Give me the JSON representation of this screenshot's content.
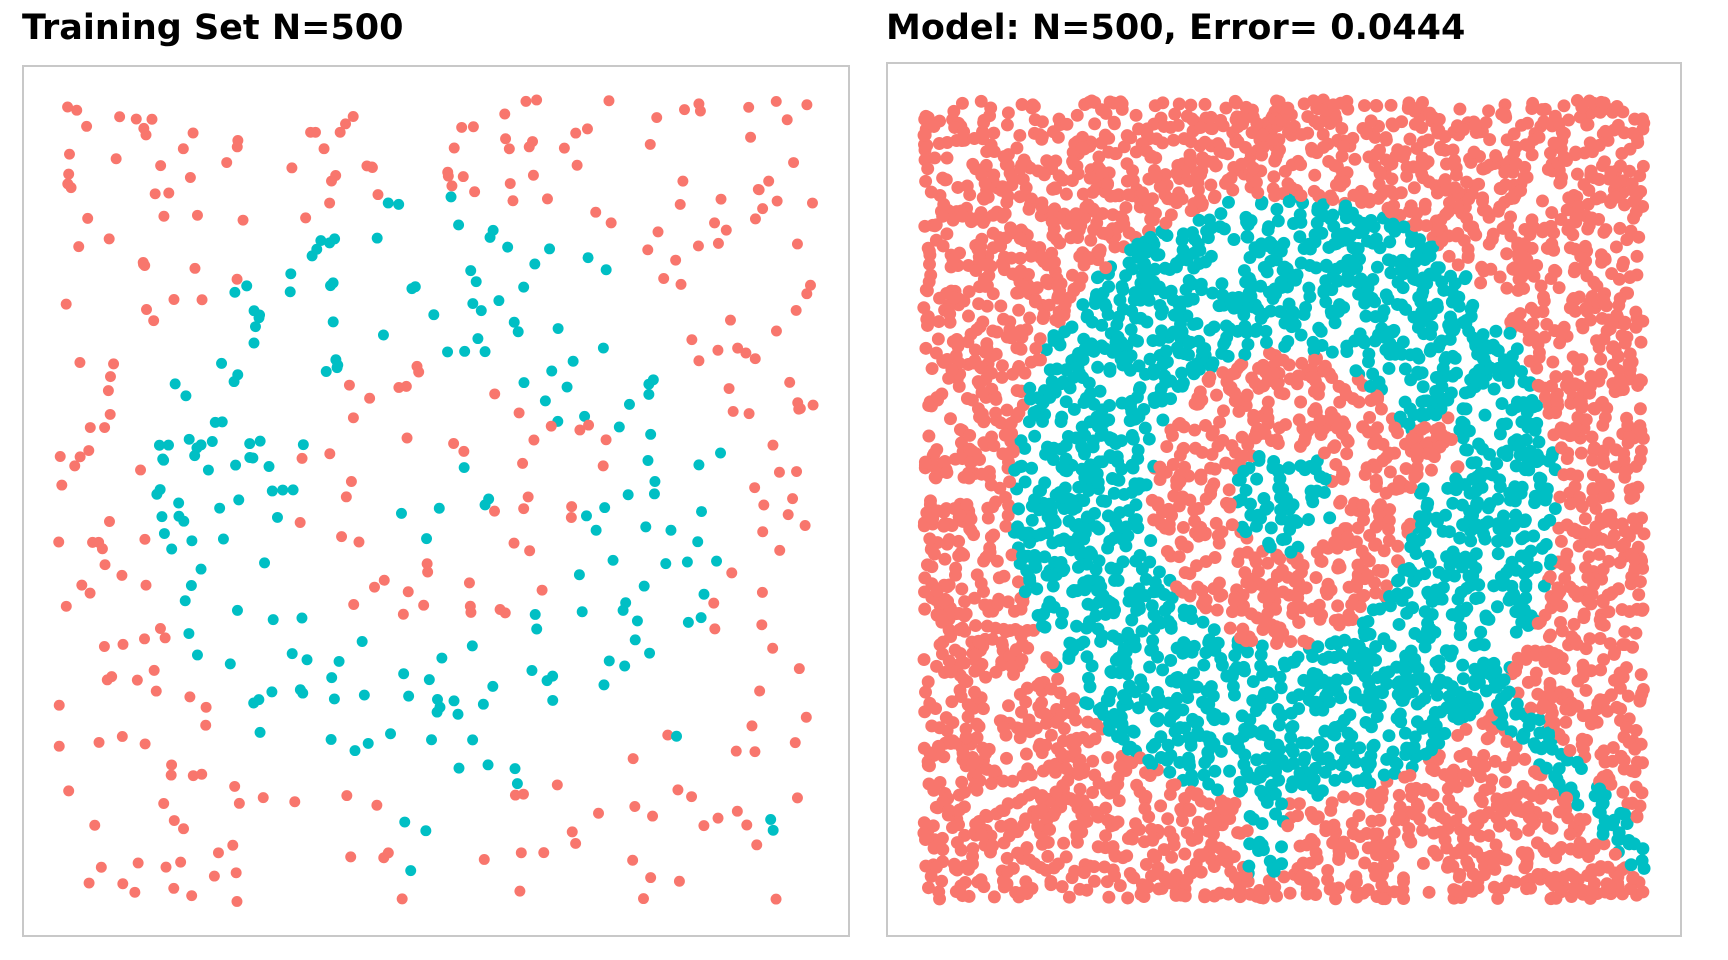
{
  "chart_data": [
    {
      "type": "scatter",
      "title": "Training Set N=500",
      "xlim": [
        -1,
        1
      ],
      "ylim": [
        -1,
        1
      ],
      "grid": false,
      "classes": [
        {
          "label": 0,
          "color": "#F8766D"
        },
        {
          "label": 1,
          "color": "#00BFC4"
        }
      ],
      "class_rule": "class 1 (teal) inside a ring roughly 0.37 < r < 0.76, a small core r < 0.14, a short stripe toward (0.65,-0.55) and a tail toward (-0.1,-0.8); class 0 (salmon) elsewhere",
      "n_points": 500,
      "seed": 500
    },
    {
      "type": "scatter",
      "title": "Model: N=500, Error= 0.0444",
      "xlim": [
        -1,
        1
      ],
      "ylim": [
        -1,
        1
      ],
      "grid": false,
      "classes": [
        {
          "label": 0,
          "color": "#F8766D"
        },
        {
          "label": 1,
          "color": "#00BFC4"
        }
      ],
      "model": "N=500",
      "error": 0.0444,
      "n_points": 5200,
      "seed": 9091
    }
  ],
  "panels": {
    "left": {
      "title": "Training Set N=500"
    },
    "right": {
      "title": "Model: N=500, Error= 0.0444"
    }
  }
}
